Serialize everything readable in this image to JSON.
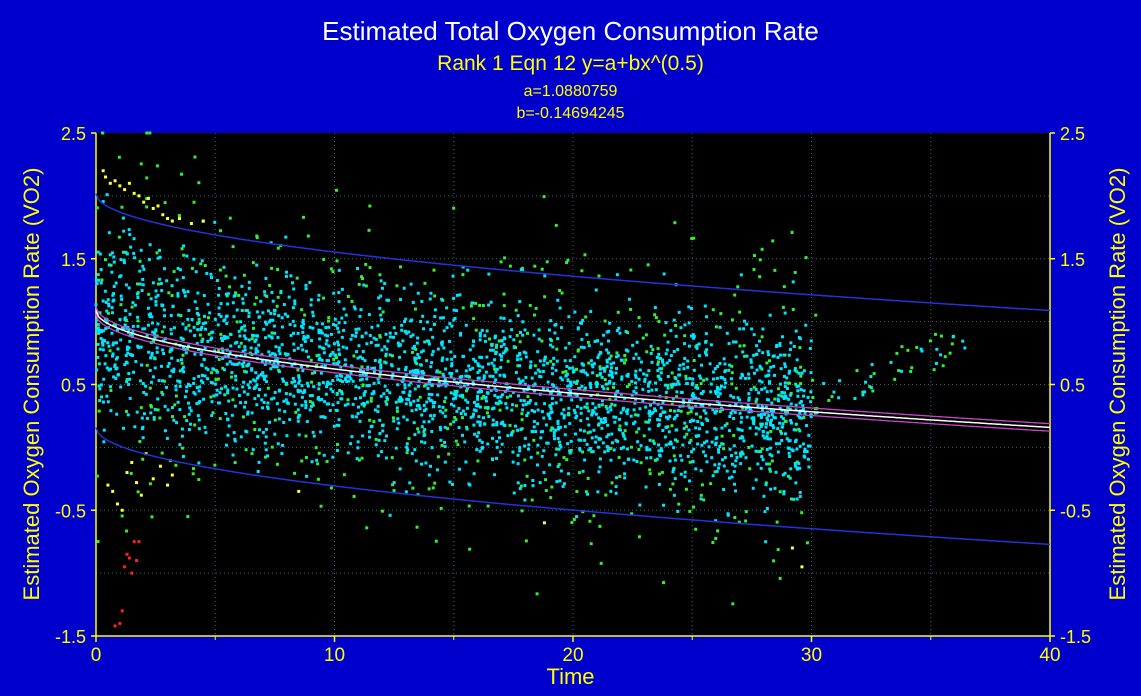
{
  "chart_data": {
    "type": "scatter",
    "title": "Estimated Total Oxygen Consumption Rate",
    "subtitle": "Rank 1  Eqn 12  y=a+bx^(0.5)",
    "param_a": "a=1.0880759",
    "param_b": "b=-0.14694245",
    "xlabel": "Time",
    "ylabel_left": "Estimated Oxygen Consumption Rate (VO2)",
    "ylabel_right": "Estimated Oxygen Consumption Rate (VO2)",
    "xlim": [
      0,
      40
    ],
    "ylim": [
      -1.5,
      2.5
    ],
    "x_ticks": [
      "0",
      "10",
      "20",
      "30",
      "40"
    ],
    "y_ticks": [
      "2.5",
      "1.5",
      "0.5",
      "-0.5",
      "-1.5"
    ],
    "grid": true,
    "fit": {
      "a": 1.0880759,
      "b": -0.14694245,
      "equation": "y=a+bx^(0.5)"
    },
    "prediction_band": {
      "upper_offset": 0.93,
      "lower_offset": -0.93
    },
    "series": [
      {
        "color": "#00e5ff",
        "x_range": [
          0,
          30
        ],
        "y_spread": 0.35
      },
      {
        "color": "#33ee33",
        "x_range": [
          0,
          36
        ],
        "y_spread": 0.62
      },
      {
        "color": "#ffff33",
        "points": [
          [
            0.3,
            2.2
          ],
          [
            0.4,
            2.15
          ],
          [
            0.6,
            2.1
          ],
          [
            0.8,
            2.12
          ],
          [
            1.0,
            2.08
          ],
          [
            1.2,
            2.05
          ],
          [
            1.4,
            2.1
          ],
          [
            1.6,
            2.02
          ],
          [
            1.8,
            2.0
          ],
          [
            2.0,
            1.95
          ],
          [
            2.2,
            1.98
          ],
          [
            2.4,
            1.9
          ],
          [
            2.6,
            1.92
          ],
          [
            2.8,
            1.85
          ],
          [
            3.0,
            1.82
          ],
          [
            3.2,
            1.8
          ],
          [
            3.5,
            1.82
          ],
          [
            4.0,
            1.78
          ],
          [
            4.5,
            1.8
          ],
          [
            0.5,
            -0.3
          ],
          [
            0.7,
            -0.35
          ],
          [
            0.9,
            -0.45
          ],
          [
            1.1,
            -0.5
          ],
          [
            1.3,
            -0.2
          ],
          [
            1.5,
            -0.12
          ],
          [
            1.7,
            -0.28
          ],
          [
            1.9,
            -0.38
          ],
          [
            2.1,
            -0.05
          ],
          [
            2.4,
            -0.25
          ],
          [
            2.7,
            -0.15
          ],
          [
            3.0,
            -0.3
          ],
          [
            3.2,
            -0.22
          ],
          [
            8.5,
            -0.35
          ],
          [
            18.8,
            -0.6
          ],
          [
            29.2,
            -0.8
          ],
          [
            29.6,
            -0.95
          ]
        ]
      },
      {
        "color": "#ff2222",
        "points": [
          [
            0.8,
            -1.42
          ],
          [
            1.0,
            -1.4
          ],
          [
            1.1,
            -1.3
          ],
          [
            1.2,
            -0.95
          ],
          [
            1.3,
            -0.85
          ],
          [
            1.4,
            -0.88
          ],
          [
            1.5,
            -1.0
          ],
          [
            1.6,
            -0.75
          ],
          [
            1.8,
            -0.75
          ],
          [
            1.7,
            -0.9
          ]
        ]
      }
    ]
  }
}
